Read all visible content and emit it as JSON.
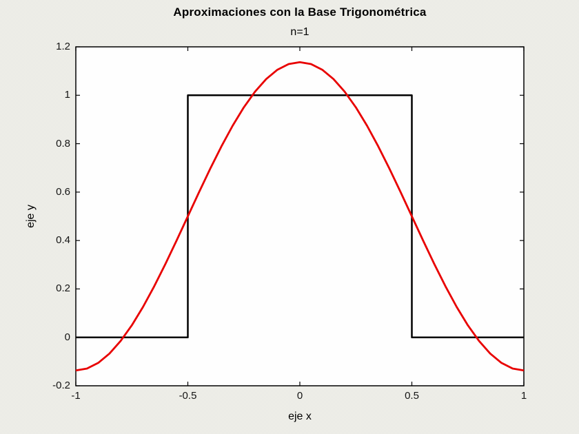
{
  "figure": {
    "title": "Aproximaciones con la Base Trigonométrica",
    "subtitle": "n=1"
  },
  "chart_data": {
    "type": "line",
    "title": "Aproximaciones con la Base Trigonométrica",
    "subtitle": "n=1",
    "xlabel": "eje x",
    "ylabel": "eje y",
    "xlim": [
      -1,
      1
    ],
    "ylim": [
      -0.2,
      1.2
    ],
    "x_ticks": [
      -1,
      -0.5,
      0,
      0.5,
      1
    ],
    "x_tick_labels": [
      "-1",
      "-0.5",
      "0",
      "0.5",
      "1"
    ],
    "y_ticks": [
      -0.2,
      0,
      0.2,
      0.4,
      0.6,
      0.8,
      1,
      1.2
    ],
    "y_tick_labels": [
      "-0.2",
      "0",
      "0.2",
      "0.4",
      "0.6",
      "0.8",
      "1",
      "1.2"
    ],
    "grid": false,
    "legend": null,
    "box": true,
    "tick_direction": "in",
    "background_color": "#f3f3ef",
    "axes_color": "#fefefe",
    "series": [
      {
        "name": "funcion-original-pulso",
        "description": "square pulse: 1 on [-0.5,0.5], 0 elsewhere",
        "color": "#000000",
        "line_width": 2.5,
        "points": [
          [
            -1,
            0
          ],
          [
            -0.5,
            0
          ],
          [
            -0.5,
            1
          ],
          [
            0.5,
            1
          ],
          [
            0.5,
            0
          ],
          [
            1,
            0
          ]
        ]
      },
      {
        "name": "aproximacion-trigonometrica-n1",
        "description": "y = 0.5 + (2/pi)*cos(pi*x)",
        "color": "#e80000",
        "line_width": 2.8,
        "points": [
          [
            -1,
            -0.1366
          ],
          [
            -0.95,
            -0.1288
          ],
          [
            -0.9,
            -0.1055
          ],
          [
            -0.85,
            -0.0672
          ],
          [
            -0.8,
            -0.015
          ],
          [
            -0.75,
            0.0498
          ],
          [
            -0.7,
            0.1258
          ],
          [
            -0.65,
            0.211
          ],
          [
            -0.6,
            0.3033
          ],
          [
            -0.55,
            0.4004
          ],
          [
            -0.5,
            0.5
          ],
          [
            -0.45,
            0.5996
          ],
          [
            -0.4,
            0.6967
          ],
          [
            -0.35,
            0.789
          ],
          [
            -0.3,
            0.8742
          ],
          [
            -0.25,
            0.9502
          ],
          [
            -0.2,
            1.015
          ],
          [
            -0.15,
            1.0672
          ],
          [
            -0.1,
            1.1055
          ],
          [
            -0.05,
            1.1288
          ],
          [
            0,
            1.1366
          ],
          [
            0.05,
            1.1288
          ],
          [
            0.1,
            1.1055
          ],
          [
            0.15,
            1.0672
          ],
          [
            0.2,
            1.015
          ],
          [
            0.25,
            0.9502
          ],
          [
            0.3,
            0.8742
          ],
          [
            0.35,
            0.789
          ],
          [
            0.4,
            0.6967
          ],
          [
            0.45,
            0.5996
          ],
          [
            0.5,
            0.5
          ],
          [
            0.55,
            0.4004
          ],
          [
            0.6,
            0.3033
          ],
          [
            0.65,
            0.211
          ],
          [
            0.7,
            0.1258
          ],
          [
            0.75,
            0.0498
          ],
          [
            0.8,
            -0.015
          ],
          [
            0.85,
            -0.0672
          ],
          [
            0.9,
            -0.1055
          ],
          [
            0.95,
            -0.1288
          ],
          [
            1,
            -0.1366
          ]
        ]
      }
    ]
  }
}
